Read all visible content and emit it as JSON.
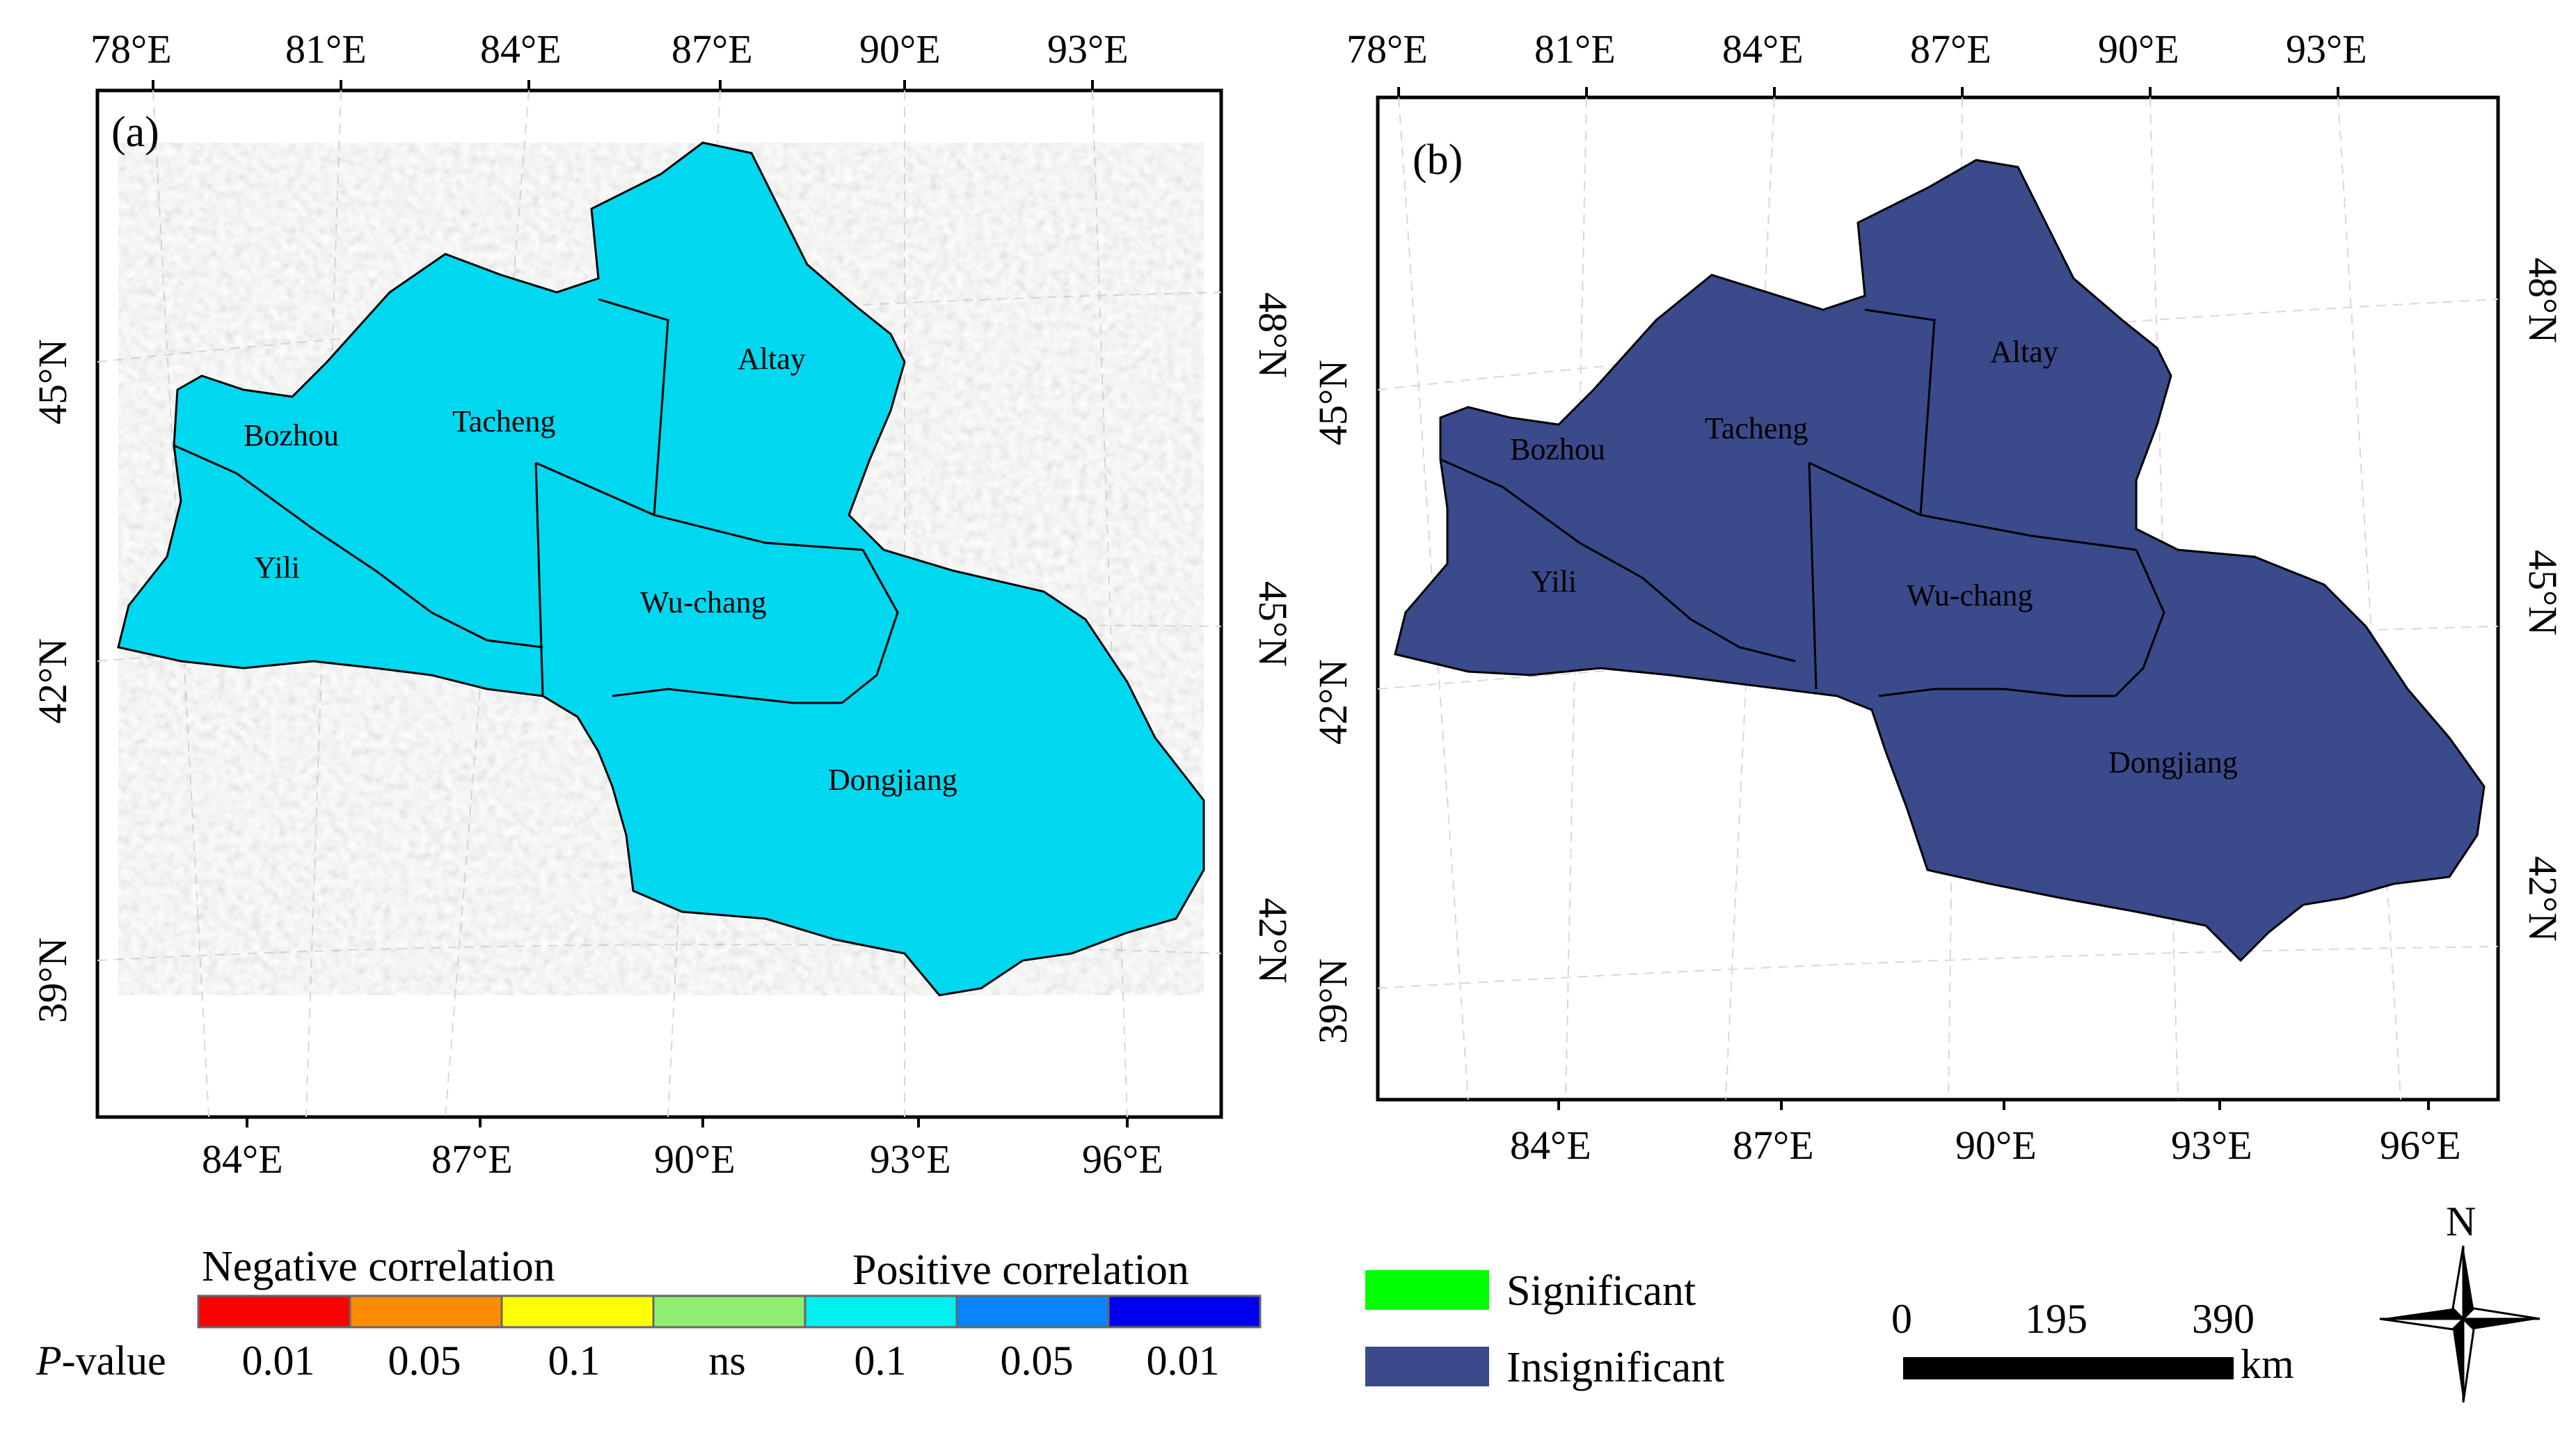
{
  "panel_a": {
    "label": "(a)",
    "top_ticks": [
      "78°E",
      "81°E",
      "84°E",
      "87°E",
      "90°E",
      "93°E"
    ],
    "bottom_ticks": [
      "84°E",
      "87°E",
      "90°E",
      "93°E",
      "96°E"
    ],
    "left_ticks": [
      "45°N",
      "42°N",
      "39°N"
    ],
    "right_ticks": [
      "48°N",
      "45°N",
      "42°N"
    ],
    "regions": [
      "Altay",
      "Tacheng",
      "Bozhou",
      "Yili",
      "Wu-chang",
      "Dongjiang"
    ]
  },
  "panel_b": {
    "label": "(b)",
    "top_ticks": [
      "78°E",
      "81°E",
      "84°E",
      "87°E",
      "90°E",
      "93°E"
    ],
    "bottom_ticks": [
      "84°E",
      "87°E",
      "90°E",
      "93°E",
      "96°E"
    ],
    "left_ticks": [
      "45°N",
      "42°N",
      "39°N"
    ],
    "right_ticks": [
      "48°N",
      "45°N",
      "42°N"
    ],
    "regions": [
      "Altay",
      "Tacheng",
      "Bozhou",
      "Yili",
      "Wu-chang",
      "Dongjiang"
    ]
  },
  "legend_a": {
    "negative_title": "Negative correlation",
    "positive_title": "Positive correlation",
    "pvalue_label_italic": "P",
    "pvalue_label_rest": "-value",
    "classes": [
      {
        "value": "0.01",
        "color": "#ff0000"
      },
      {
        "value": "0.05",
        "color": "#ff8c00"
      },
      {
        "value": "0.1",
        "color": "#ffff00"
      },
      {
        "value": "ns",
        "color": "#90ee70"
      },
      {
        "value": "0.1",
        "color": "#00f0f0"
      },
      {
        "value": "0.05",
        "color": "#0a84ff"
      },
      {
        "value": "0.01",
        "color": "#0000f0"
      }
    ]
  },
  "legend_b": {
    "items": [
      {
        "label": "Significant",
        "color": "#00ff00"
      },
      {
        "label": "Insignificant",
        "color": "#3a4a8a"
      }
    ]
  },
  "scale_bar": {
    "labels": [
      "0",
      "195",
      "390"
    ],
    "unit": "km"
  },
  "north_arrow": {
    "label": "N"
  }
}
